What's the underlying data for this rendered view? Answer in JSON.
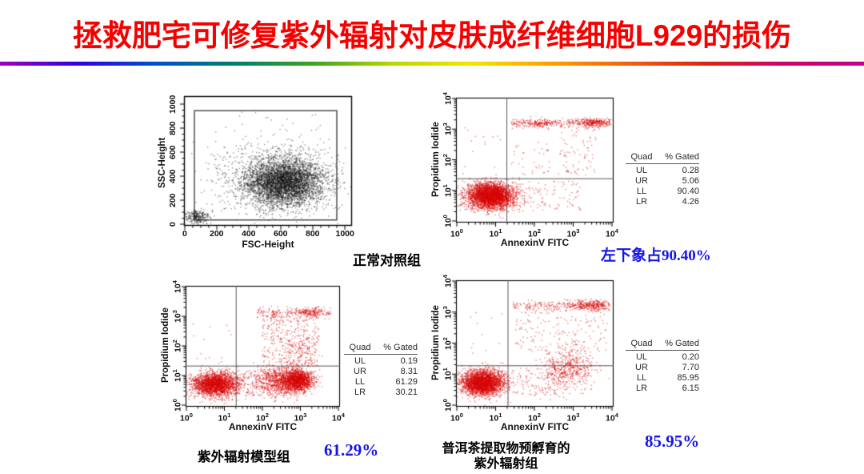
{
  "slide": {
    "title": "拯救肥宅可修复紫外辐射对皮肤成纤维细胞L929的损伤",
    "title_color": "#f60000",
    "rainbow_gradient": [
      "#a000c0",
      "#3000e0",
      "#0050d0",
      "#00806a",
      "#3da41e",
      "#b8d800",
      "#f5e400",
      "#ffa000",
      "#f06010",
      "#e02010",
      "#d0006e",
      "#c00090"
    ],
    "background_color": "#ffffff"
  },
  "captions": {
    "normal_control": "正常对照组",
    "uv_model": "紫外辐射模型组",
    "tea_line1": "普洱茶提取物预孵育的",
    "tea_line2": "紫外辐射组",
    "blue_normal": "左下象占90.40%",
    "blue_uv": "61.29%",
    "blue_tea": "85.95%",
    "blue_color": "#1515e8"
  },
  "chart_data": [
    {
      "id": "normal-control-fsc-ssc",
      "type": "scatter",
      "caption": "正常对照组",
      "xlabel": "FSC-Height",
      "ylabel": "SSC-Height",
      "scale": "linear",
      "x_range": [
        0,
        1000
      ],
      "y_range": [
        0,
        1000
      ],
      "ticks": [
        0,
        200,
        400,
        600,
        800,
        1000
      ],
      "point_color": "#111111",
      "gate_region": {
        "x0": 60,
        "y0": 35,
        "x1": 950,
        "y1": 945
      },
      "clusters": [
        {
          "kind": "gauss",
          "n": 4200,
          "cx": 620,
          "cy": 350,
          "sx": 120,
          "sy": 95
        },
        {
          "kind": "gauss",
          "n": 900,
          "cx": 590,
          "cy": 380,
          "sx": 195,
          "sy": 155
        },
        {
          "kind": "gauss",
          "n": 260,
          "cx": 80,
          "cy": 60,
          "sx": 38,
          "sy": 26
        },
        {
          "kind": "uniform",
          "n": 70,
          "x0": 120,
          "x1": 960,
          "y0": 60,
          "y1": 950
        }
      ]
    },
    {
      "id": "normal-control-annexin-pi",
      "type": "scatter",
      "caption": "左下象占90.40%",
      "xlabel": "AnnexinV FITC",
      "ylabel": "Propidium Iodide",
      "scale": "log",
      "x_decades": [
        0,
        4
      ],
      "y_decades": [
        0,
        4
      ],
      "quadrant": {
        "x": 1.29,
        "y": 1.38
      },
      "point_color": "#d80000",
      "stats": {
        "header": [
          "Quad",
          "% Gated"
        ],
        "rows": [
          [
            "UL",
            "0.28"
          ],
          [
            "UR",
            "5.06"
          ],
          [
            "LL",
            "90.40"
          ],
          [
            "LR",
            "4.26"
          ]
        ]
      },
      "clusters": [
        {
          "kind": "gauss",
          "n": 3600,
          "cx": 0.87,
          "cy": 0.82,
          "sx": 0.3,
          "sy": 0.21
        },
        {
          "kind": "band",
          "n": 300,
          "x0": 1.4,
          "x1": 3.95,
          "cy": 3.2,
          "sy": 0.07
        },
        {
          "kind": "gauss",
          "n": 230,
          "cx": 3.55,
          "cy": 3.2,
          "sx": 0.2,
          "sy": 0.08
        },
        {
          "kind": "gauss",
          "n": 90,
          "cx": 2.1,
          "cy": 3.17,
          "sx": 0.2,
          "sy": 0.07
        },
        {
          "kind": "uniform",
          "n": 80,
          "x0": 2.6,
          "x1": 3.6,
          "y0": 1.5,
          "y1": 3.05
        },
        {
          "kind": "uniform",
          "n": 120,
          "x0": 1.35,
          "x1": 3.2,
          "y0": 0.3,
          "y1": 1.3
        },
        {
          "kind": "uniform",
          "n": 40,
          "x0": 1.3,
          "x1": 2.4,
          "y0": 1.4,
          "y1": 2.6
        },
        {
          "kind": "uniform",
          "n": 14,
          "x0": 0.15,
          "x1": 1.2,
          "y0": 1.5,
          "y1": 3.2
        }
      ]
    },
    {
      "id": "uv-model-annexin-pi",
      "type": "scatter",
      "caption": "紫外辐射模型组 61.29%",
      "xlabel": "AnnexinV FITC",
      "ylabel": "Propidium Iodide",
      "scale": "log",
      "x_decades": [
        0,
        4
      ],
      "y_decades": [
        0,
        4
      ],
      "quadrant": {
        "x": 1.31,
        "y": 1.32
      },
      "point_color": "#d80000",
      "stats": {
        "header": [
          "Quad",
          "% Gated"
        ],
        "rows": [
          [
            "UL",
            "0.19"
          ],
          [
            "UR",
            "8.31"
          ],
          [
            "LL",
            "61.29"
          ],
          [
            "LR",
            "30.21"
          ]
        ]
      },
      "clusters": [
        {
          "kind": "gauss",
          "n": 2400,
          "cx": 0.75,
          "cy": 0.7,
          "sx": 0.3,
          "sy": 0.2
        },
        {
          "kind": "gauss",
          "n": 1100,
          "cx": 2.55,
          "cy": 0.8,
          "sx": 0.33,
          "sy": 0.24
        },
        {
          "kind": "gauss",
          "n": 1300,
          "cx": 2.95,
          "cy": 0.85,
          "sx": 0.18,
          "sy": 0.18
        },
        {
          "kind": "band",
          "n": 200,
          "x0": 1.85,
          "x1": 3.8,
          "cy": 3.12,
          "sy": 0.09
        },
        {
          "kind": "gauss",
          "n": 130,
          "cx": 3.25,
          "cy": 3.12,
          "sx": 0.18,
          "sy": 0.08
        },
        {
          "kind": "uniform",
          "n": 380,
          "x0": 2.0,
          "x1": 3.5,
          "y0": 1.3,
          "y1": 3.0
        },
        {
          "kind": "gauss",
          "n": 80,
          "cx": 3.0,
          "cy": 1.8,
          "sx": 0.25,
          "sy": 0.3
        },
        {
          "kind": "uniform",
          "n": 150,
          "x0": 1.0,
          "x1": 2.2,
          "y0": 0.3,
          "y1": 1.2
        },
        {
          "kind": "uniform",
          "n": 12,
          "x0": 0.15,
          "x1": 1.25,
          "y0": 1.45,
          "y1": 3.1
        }
      ]
    },
    {
      "id": "puer-tea-annexin-pi",
      "type": "scatter",
      "caption": "普洱茶提取物预孵育的紫外辐射组 85.95%",
      "xlabel": "AnnexinV FITC",
      "ylabel": "Propidium Iodide",
      "scale": "log",
      "x_decades": [
        0,
        4
      ],
      "y_decades": [
        0,
        4
      ],
      "quadrant": {
        "x": 1.32,
        "y": 1.27
      },
      "point_color": "#d80000",
      "stats": {
        "header": [
          "Quad",
          "% Gated"
        ],
        "rows": [
          [
            "UL",
            "0.20"
          ],
          [
            "UR",
            "7.70"
          ],
          [
            "LL",
            "85.95"
          ],
          [
            "LR",
            "6.15"
          ]
        ]
      },
      "clusters": [
        {
          "kind": "gauss",
          "n": 3000,
          "cx": 0.66,
          "cy": 0.72,
          "sx": 0.28,
          "sy": 0.2
        },
        {
          "kind": "band",
          "n": 260,
          "x0": 1.45,
          "x1": 3.95,
          "cy": 3.2,
          "sy": 0.08
        },
        {
          "kind": "gauss",
          "n": 240,
          "cx": 3.45,
          "cy": 3.22,
          "sx": 0.25,
          "sy": 0.09
        },
        {
          "kind": "gauss",
          "n": 550,
          "cx": 2.85,
          "cy": 1.15,
          "sx": 0.33,
          "sy": 0.35
        },
        {
          "kind": "uniform",
          "n": 170,
          "x0": 1.5,
          "x1": 3.9,
          "y0": 1.7,
          "y1": 3.1
        },
        {
          "kind": "uniform",
          "n": 90,
          "x0": 1.35,
          "x1": 2.6,
          "y0": 0.3,
          "y1": 1.2
        },
        {
          "kind": "uniform",
          "n": 10,
          "x0": 0.15,
          "x1": 1.25,
          "y0": 1.45,
          "y1": 3.1
        }
      ]
    }
  ]
}
